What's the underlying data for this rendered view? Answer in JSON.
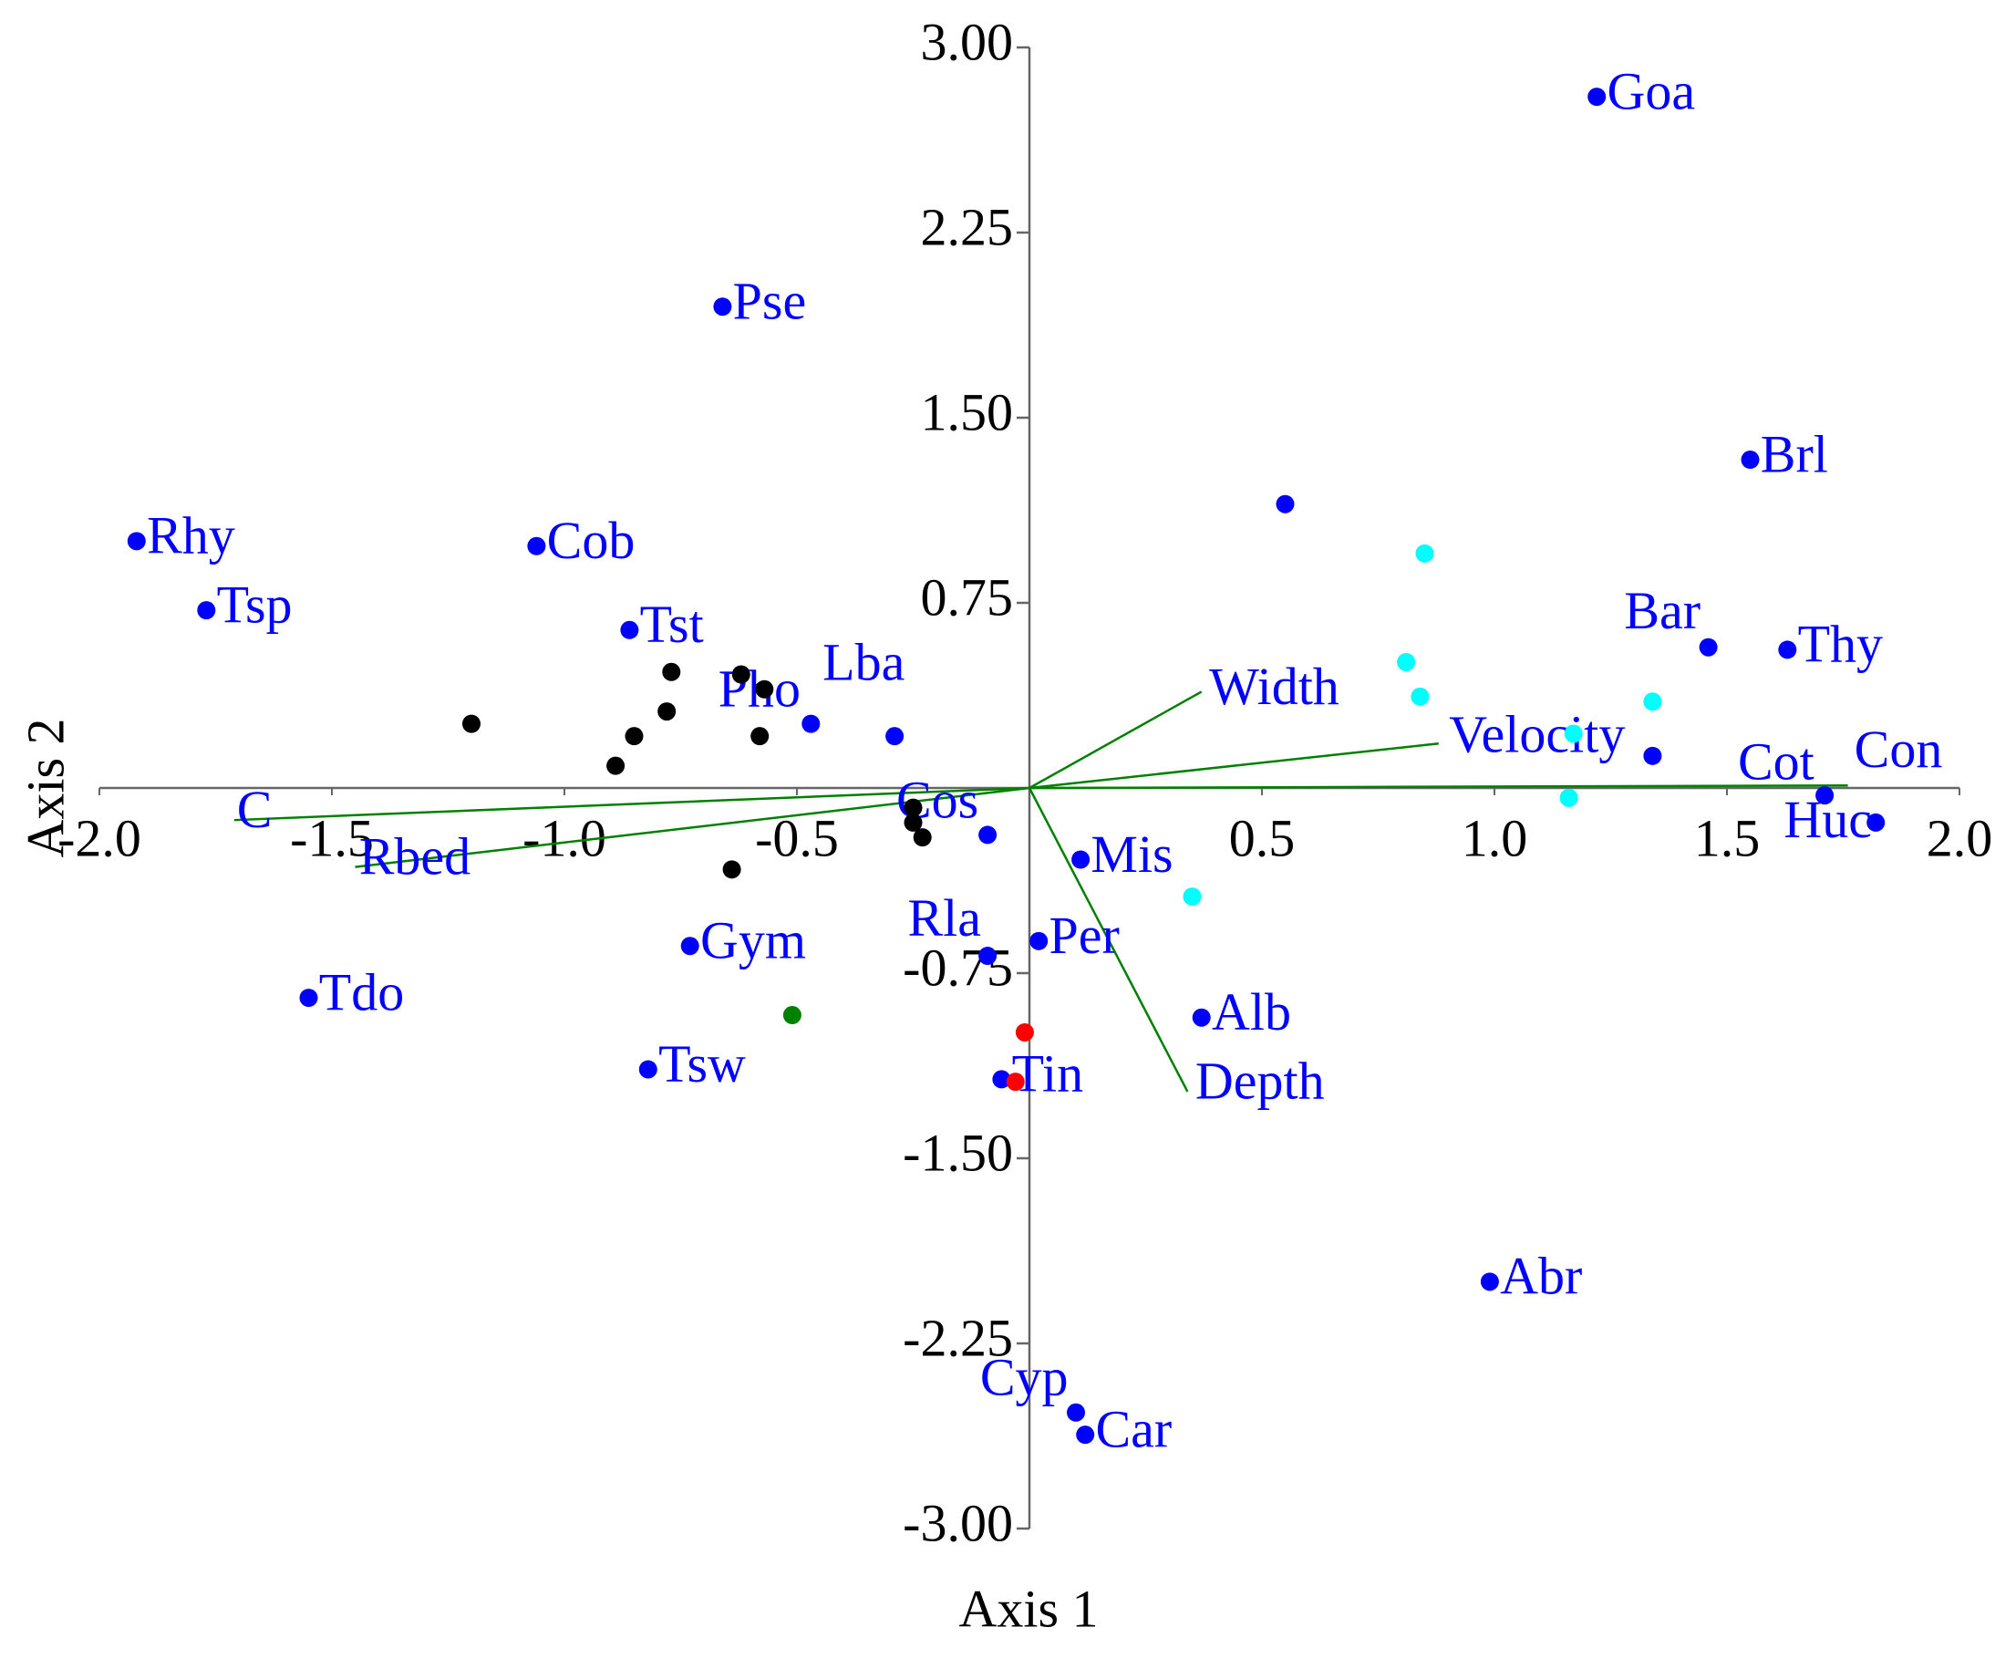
{
  "chart_data": {
    "type": "biplot",
    "xlabel": "Axis 1",
    "ylabel": "Axis 2",
    "xlim": [
      -2,
      2
    ],
    "ylim": [
      -3,
      3
    ],
    "xticks": [
      {
        "value": -2,
        "label": "-2.0"
      },
      {
        "value": -1.5,
        "label": "-1.5"
      },
      {
        "value": -1,
        "label": "-1.0"
      },
      {
        "value": -0.5,
        "label": "-0.5"
      },
      {
        "value": 0.5,
        "label": "0.5"
      },
      {
        "value": 1,
        "label": "1.0"
      },
      {
        "value": 1.5,
        "label": "1.5"
      },
      {
        "value": 2,
        "label": "2.0"
      }
    ],
    "yticks": [
      {
        "value": 3,
        "label": "3.00"
      },
      {
        "value": 2.25,
        "label": "2.25"
      },
      {
        "value": 1.5,
        "label": "1.50"
      },
      {
        "value": 0.75,
        "label": "0.75"
      },
      {
        "value": -0.75,
        "label": "-0.75"
      },
      {
        "value": -1.5,
        "label": "-1.50"
      },
      {
        "value": -2.25,
        "label": "-2.25"
      },
      {
        "value": -3,
        "label": "-3.00"
      }
    ],
    "label_color": "#0000ff",
    "vector_color": "#008000",
    "vectors": [
      {
        "name": "Width",
        "x": 0.37,
        "y": 0.39
      },
      {
        "name": "Velocity",
        "x": 0.88,
        "y": 0.18
      },
      {
        "name": "Con",
        "x": 1.76,
        "y": 0.01
      },
      {
        "name": "Depth",
        "x": 0.34,
        "y": -1.23
      },
      {
        "name": "C",
        "x": -1.71,
        "y": -0.13
      },
      {
        "name": "Rbed",
        "x": -1.45,
        "y": -0.32
      }
    ],
    "series": [
      {
        "color": "#0000ff",
        "labels": [
          "Goa",
          "Pse",
          "Brl",
          "Rhy",
          "Cob",
          "Tsp",
          "Tst",
          "Bar",
          "Thy",
          "Pho",
          "Lba",
          "Cot",
          "Huc",
          "Cos",
          "Mis",
          "Rla",
          "Per",
          "Gym",
          "Tdo",
          "Alb",
          "Tsw",
          "Tin",
          "Abr",
          "Cyp",
          "Car"
        ],
        "x": [
          1.22,
          -0.66,
          1.55,
          -1.92,
          -1.06,
          -1.77,
          -0.86,
          1.46,
          1.63,
          -0.47,
          -0.29,
          1.71,
          1.82,
          -0.09,
          0.11,
          -0.09,
          0.02,
          -0.73,
          -1.55,
          0.37,
          -0.82,
          -0.06,
          0.99,
          0.1,
          0.12
        ],
        "y": [
          2.8,
          1.95,
          1.33,
          1.0,
          0.98,
          0.72,
          0.64,
          0.57,
          0.56,
          0.26,
          0.21,
          -0.03,
          -0.14,
          -0.19,
          -0.29,
          -0.68,
          -0.62,
          -0.64,
          -0.85,
          -0.93,
          -1.14,
          -1.18,
          -2.0,
          -2.53,
          -2.62
        ]
      },
      {
        "color": "#000000",
        "x": [
          -1.2,
          -0.77,
          -0.62,
          -0.57,
          -0.78,
          -0.85,
          -0.58,
          -0.89,
          -0.25,
          -0.25,
          -0.23,
          -0.64
        ],
        "y": [
          0.26,
          0.47,
          0.46,
          0.4,
          0.31,
          0.21,
          0.21,
          0.09,
          -0.08,
          -0.14,
          -0.2,
          -0.33
        ]
      },
      {
        "color": "#00ffff",
        "x": [
          0.85,
          0.81,
          0.84,
          1.34,
          1.17,
          1.16,
          0.35
        ],
        "y": [
          0.95,
          0.51,
          0.37,
          0.35,
          0.22,
          -0.04,
          -0.44
        ]
      },
      {
        "color": "#0000ff",
        "x": [
          0.55,
          1.34
        ],
        "y": [
          1.15,
          0.13
        ]
      },
      {
        "color": "#008000",
        "x": [
          -0.51
        ],
        "y": [
          -0.92
        ]
      },
      {
        "color": "#ff0000",
        "x": [
          -0.01,
          -0.03
        ],
        "y": [
          -0.99,
          -1.19
        ]
      }
    ]
  }
}
